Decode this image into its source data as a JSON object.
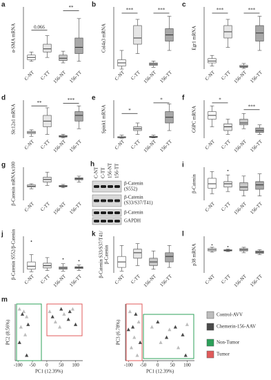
{
  "chart_data": [
    {
      "type": "box",
      "label": "a",
      "ylabel": "α-SMA mRNA",
      "categories": [
        "C-NT",
        "C-TT",
        "156-NT",
        "156-TT"
      ],
      "colors": [
        "#ffffff",
        "#e6e6e6",
        "#c8c8c8",
        "#a8a8a8"
      ],
      "ylim": [
        0,
        8
      ],
      "boxes": [
        {
          "min": 1,
          "q1": 1.2,
          "median": 1.5,
          "q3": 1.8,
          "max": 2.2
        },
        {
          "min": 1.5,
          "q1": 2.2,
          "median": 2.6,
          "q3": 3.2,
          "max": 4.3
        },
        {
          "min": 0.8,
          "q1": 1.1,
          "median": 1.4,
          "q3": 1.8,
          "max": 2.3
        },
        {
          "min": 1,
          "q1": 2,
          "median": 2.8,
          "q3": 4,
          "max": 6.5
        }
      ],
      "annotations": [
        {
          "text": "0.066",
          "between": [
            "C-NT",
            "C-TT"
          ],
          "y": 5
        },
        {
          "text": "**",
          "between": [
            "156-NT",
            "156-TT"
          ],
          "y": 7.5
        }
      ]
    },
    {
      "type": "box",
      "label": "b",
      "ylabel": "Col4a3 mRNA",
      "categories": [
        "C-NT",
        "C-TT",
        "156-NT",
        "156-TT"
      ],
      "colors": [
        "#ffffff",
        "#e6e6e6",
        "#c8c8c8",
        "#a8a8a8"
      ],
      "ylim": [
        0,
        10
      ],
      "boxes": [
        {
          "min": 0,
          "q1": 0.5,
          "median": 1,
          "q3": 1.5,
          "max": 3
        },
        {
          "min": 2.5,
          "q1": 4,
          "median": 5,
          "q3": 7,
          "max": 8
        },
        {
          "min": 0.3,
          "q1": 0.6,
          "median": 0.8,
          "q3": 1,
          "max": 1.3
        },
        {
          "min": 3,
          "q1": 4.5,
          "median": 5.5,
          "q3": 6.5,
          "max": 8.5
        }
      ],
      "annotations": [
        {
          "text": "***",
          "between": [
            "C-NT",
            "C-TT"
          ],
          "y": 9
        },
        {
          "text": "***",
          "between": [
            "156-NT",
            "156-TT"
          ],
          "y": 9
        }
      ]
    },
    {
      "type": "box",
      "label": "c",
      "ylabel": "Egr1 mRNA",
      "categories": [
        "C-NT",
        "C-TT",
        "156-NT",
        "156-TT"
      ],
      "colors": [
        "#ffffff",
        "#e6e6e6",
        "#c8c8c8",
        "#a8a8a8"
      ],
      "ylim": [
        0,
        10
      ],
      "boxes": [
        {
          "min": 0.5,
          "q1": 1,
          "median": 1.3,
          "q3": 1.7,
          "max": 2.2
        },
        {
          "min": 3.5,
          "q1": 5,
          "median": 6,
          "q3": 7,
          "max": 8
        },
        {
          "min": 0.1,
          "q1": 0.3,
          "median": 0.4,
          "q3": 0.6,
          "max": 0.9
        },
        {
          "min": 3,
          "q1": 4.5,
          "median": 5.8,
          "q3": 7,
          "max": 8.5
        }
      ],
      "annotations": [
        {
          "text": "***",
          "between": [
            "C-NT",
            "C-TT"
          ],
          "y": 9
        },
        {
          "text": "***",
          "between": [
            "156-NT",
            "156-TT"
          ],
          "y": 9
        }
      ]
    },
    {
      "type": "box",
      "label": "d",
      "ylabel": "Slc12a1 mRNA",
      "categories": [
        "C-NT",
        "C-TT",
        "156-NT",
        "156-TT"
      ],
      "colors": [
        "#ffffff",
        "#e6e6e6",
        "#c8c8c8",
        "#a8a8a8"
      ],
      "ylim": [
        0,
        10
      ],
      "boxes": [
        {
          "min": 0.5,
          "q1": 1.2,
          "median": 1.5,
          "q3": 1.8,
          "max": 2.2
        },
        {
          "min": 1,
          "q1": 3,
          "median": 4.5,
          "q3": 6,
          "max": 8
        },
        {
          "min": 0.1,
          "q1": 0.3,
          "median": 0.5,
          "q3": 0.7,
          "max": 1
        },
        {
          "min": 2.5,
          "q1": 4.5,
          "median": 6,
          "q3": 7,
          "max": 8.5
        }
      ],
      "annotations": [
        {
          "text": "**",
          "between": [
            "C-NT",
            "C-TT"
          ],
          "y": 8.5
        },
        {
          "text": "***",
          "between": [
            "156-NT",
            "156-TT"
          ],
          "y": 9.2
        }
      ]
    },
    {
      "type": "box",
      "label": "e",
      "ylabel": "Spink1 mRNA",
      "categories": [
        "C-NT",
        "C-TT",
        "156-NT",
        "156-TT"
      ],
      "colors": [
        "#ffffff",
        "#e6e6e6",
        "#c8c8c8",
        "#a8a8a8"
      ],
      "ylim": [
        0,
        10
      ],
      "boxes": [
        {
          "min": 0,
          "q1": 0.1,
          "median": 0.2,
          "q3": 0.4,
          "max": 0.8
        },
        {
          "min": 1,
          "q1": 2,
          "median": 2.5,
          "q3": 3,
          "max": 4
        },
        {
          "min": 0.1,
          "q1": 0.2,
          "median": 0.3,
          "q3": 0.5,
          "max": 0.8
        },
        {
          "min": 2,
          "q1": 4,
          "median": 5.5,
          "q3": 7,
          "max": 9
        }
      ],
      "annotations": [
        {
          "text": "*",
          "between": [
            "C-NT",
            "C-TT"
          ],
          "y": 6.5
        },
        {
          "text": "*",
          "between": [
            "156-NT",
            "156-TT"
          ],
          "y": 9.3
        }
      ]
    },
    {
      "type": "box",
      "label": "f",
      "ylabel": "G6PC mRNA",
      "categories": [
        "C-NT",
        "C-TT",
        "156-NT",
        "156-TT"
      ],
      "colors": [
        "#ffffff",
        "#e6e6e6",
        "#c8c8c8",
        "#a8a8a8"
      ],
      "ylim": [
        0,
        10
      ],
      "boxes": [
        {
          "min": 3,
          "q1": 5,
          "median": 6,
          "q3": 7,
          "max": 8.5
        },
        {
          "min": 1,
          "q1": 2,
          "median": 3,
          "q3": 3.8,
          "max": 5
        },
        {
          "min": 2.5,
          "q1": 3.5,
          "median": 4,
          "q3": 5,
          "max": 6.5
        },
        {
          "min": 1,
          "q1": 1.5,
          "median": 2,
          "q3": 2.7,
          "max": 3.5
        }
      ],
      "annotations": [
        {
          "text": "*",
          "between": [
            "C-NT",
            "C-TT"
          ],
          "y": 9.3
        },
        {
          "text": "***",
          "between": [
            "156-NT",
            "156-TT"
          ],
          "y": 7.5
        }
      ]
    },
    {
      "type": "box",
      "label": "g",
      "ylabel": "β-Catenin mRNAx100",
      "categories": [
        "C-NT",
        "C-TT",
        "156-NT",
        "156-TT"
      ],
      "colors": [
        "#ffffff",
        "#e6e6e6",
        "#c8c8c8",
        "#a8a8a8"
      ],
      "ylim": [
        0,
        10
      ],
      "boxes": [
        {
          "min": 3.5,
          "q1": 4,
          "median": 4.3,
          "q3": 4.7,
          "max": 5
        },
        {
          "min": 4.5,
          "q1": 5.5,
          "median": 6.3,
          "q3": 7,
          "max": 8.5
        },
        {
          "min": 3.8,
          "q1": 4.1,
          "median": 4.3,
          "q3": 4.5,
          "max": 4.8
        },
        {
          "min": 5.5,
          "q1": 6.2,
          "median": 6.5,
          "q3": 6.8,
          "max": 7.3
        }
      ]
    },
    {
      "type": "box",
      "label": "i",
      "ylabel": "β-Catenin",
      "categories": [
        "C-NT",
        "C-TT",
        "156-NT",
        "156-TT"
      ],
      "colors": [
        "#ffffff",
        "#e6e6e6",
        "#c8c8c8",
        "#a8a8a8"
      ],
      "ylim": [
        0,
        1.5
      ],
      "boxes": [
        {
          "min": 0.3,
          "q1": 0.55,
          "median": 0.75,
          "q3": 1,
          "max": 1.3
        },
        {
          "min": 0.4,
          "q1": 0.6,
          "median": 0.75,
          "q3": 0.85,
          "max": 1.15,
          "outliers": [
            1.35
          ]
        },
        {
          "min": 0.2,
          "q1": 0.45,
          "median": 0.6,
          "q3": 0.8,
          "max": 1.1
        },
        {
          "min": 0.2,
          "q1": 0.5,
          "median": 0.7,
          "q3": 0.85,
          "max": 1.2
        }
      ]
    },
    {
      "type": "box",
      "label": "j",
      "ylabel": "β-Catenin S552/β-Catenin",
      "categories": [
        "C-NT",
        "C-TT",
        "156-NT",
        "156-TT"
      ],
      "colors": [
        "#ffffff",
        "#e6e6e6",
        "#c8c8c8",
        "#a8a8a8"
      ],
      "ylim": [
        0,
        6
      ],
      "boxes": [
        {
          "min": 0.2,
          "q1": 0.6,
          "median": 1.1,
          "q3": 1.8,
          "max": 3,
          "outliers": [
            5.2
          ]
        },
        {
          "min": 0.4,
          "q1": 0.8,
          "median": 1.2,
          "q3": 1.6,
          "max": 2.5
        },
        {
          "min": 0.3,
          "q1": 0.6,
          "median": 0.8,
          "q3": 1,
          "max": 1.5,
          "outliers": [
            2.3
          ]
        },
        {
          "min": 0.4,
          "q1": 0.7,
          "median": 0.9,
          "q3": 1,
          "max": 1.3,
          "outliers": [
            2
          ]
        }
      ]
    },
    {
      "type": "box",
      "label": "k",
      "ylabel": [
        "β-Catenin S33/S37/T41/",
        "β-Catenin"
      ],
      "categories": [
        "C-NT",
        "C-TT",
        "156-NT",
        "156-TT"
      ],
      "colors": [
        "#ffffff",
        "#e6e6e6",
        "#c8c8c8",
        "#a8a8a8"
      ],
      "ylim": [
        0,
        2
      ],
      "boxes": [
        {
          "min": 0.1,
          "q1": 0.3,
          "median": 0.6,
          "q3": 0.9,
          "max": 1.5
        },
        {
          "min": 0.4,
          "q1": 0.8,
          "median": 1.1,
          "q3": 1.3,
          "max": 1.6
        },
        {
          "min": 0.2,
          "q1": 0.4,
          "median": 0.6,
          "q3": 0.8,
          "max": 1.2
        },
        {
          "min": 0.3,
          "q1": 0.6,
          "median": 0.9,
          "q3": 1.1,
          "max": 1.5
        }
      ]
    },
    {
      "type": "box",
      "label": "l",
      "ylabel": "p38 mRNA",
      "categories": [
        "C-NT",
        "C-TT",
        "156-NT",
        "156-TT"
      ],
      "colors": [
        "#ffffff",
        "#e6e6e6",
        "#c8c8c8",
        "#a8a8a8"
      ],
      "ylim": [
        0,
        3
      ],
      "boxes": [
        {
          "min": 1.7,
          "q1": 1.8,
          "median": 1.9,
          "q3": 2,
          "max": 2.1,
          "outliers": [
            2.3
          ]
        },
        {
          "min": 1.75,
          "q1": 1.8,
          "median": 1.85,
          "q3": 1.9,
          "max": 1.95,
          "outliers": [
            2.15
          ]
        },
        {
          "min": 1.65,
          "q1": 1.8,
          "median": 1.9,
          "q3": 2,
          "max": 2.1
        },
        {
          "min": 1.5,
          "q1": 1.6,
          "median": 1.7,
          "q3": 1.8,
          "max": 1.9
        }
      ]
    },
    {
      "type": "scatter",
      "label": "m",
      "xlabel": "PC1 (12.39%)",
      "ylabel": "PC2 (8.56%)",
      "xlim": [
        -110,
        125
      ],
      "ylim": [
        -55,
        55
      ],
      "xticks": [
        -100,
        -50,
        0,
        50,
        100
      ],
      "series": [
        {
          "name": "Control-AVV",
          "color": "#bdbdbd",
          "x": [
            -95,
            -80,
            -70,
            -90,
            -75,
            10,
            30,
            60,
            90,
            45
          ],
          "y": [
            45,
            40,
            30,
            10,
            -5,
            40,
            20,
            35,
            45,
            10
          ]
        },
        {
          "name": "Chemerin-156-AAV",
          "color": "#4a4a4a",
          "x": [
            -85,
            -65,
            -95,
            -70,
            20,
            50,
            75,
            100,
            80
          ],
          "y": [
            35,
            15,
            -20,
            -45,
            30,
            45,
            25,
            15,
            40
          ]
        }
      ],
      "regions": [
        {
          "name": "Non-Tumor",
          "color": "#2ca05a"
        },
        {
          "name": "Tumor",
          "color": "#e05a5a"
        }
      ]
    },
    {
      "type": "scatter",
      "xlabel": "PC1 (12.39%)",
      "ylabel": "PC3 (6.78%)",
      "xlim": [
        -110,
        125
      ],
      "ylim": [
        -55,
        55
      ],
      "xticks": [
        -100,
        -50,
        0,
        50,
        100
      ],
      "series": [
        {
          "color": "#bdbdbd",
          "x": [
            -95,
            -80,
            -65,
            -90,
            -70,
            -20,
            10,
            40,
            70,
            100
          ],
          "y": [
            40,
            -10,
            20,
            -30,
            -45,
            10,
            -20,
            5,
            -30,
            15
          ]
        },
        {
          "color": "#4a4a4a",
          "x": [
            -85,
            -60,
            -100,
            -75,
            0,
            30,
            60,
            85,
            95
          ],
          "y": [
            10,
            -20,
            5,
            35,
            20,
            -10,
            10,
            -5,
            -45
          ]
        }
      ]
    }
  ],
  "blot": {
    "label": "h",
    "lanes": [
      "C-NT",
      "C-TT",
      "156-NT",
      "156-TT"
    ],
    "bands": [
      {
        "label": [
          "β-Catenin",
          "(S552)"
        ]
      },
      {
        "label": [
          "β-Catenin",
          "(S33/S37/T41)"
        ]
      },
      {
        "label": [
          "β-Catenin"
        ]
      },
      {
        "label": [
          "GAPDH"
        ]
      }
    ]
  }
}
